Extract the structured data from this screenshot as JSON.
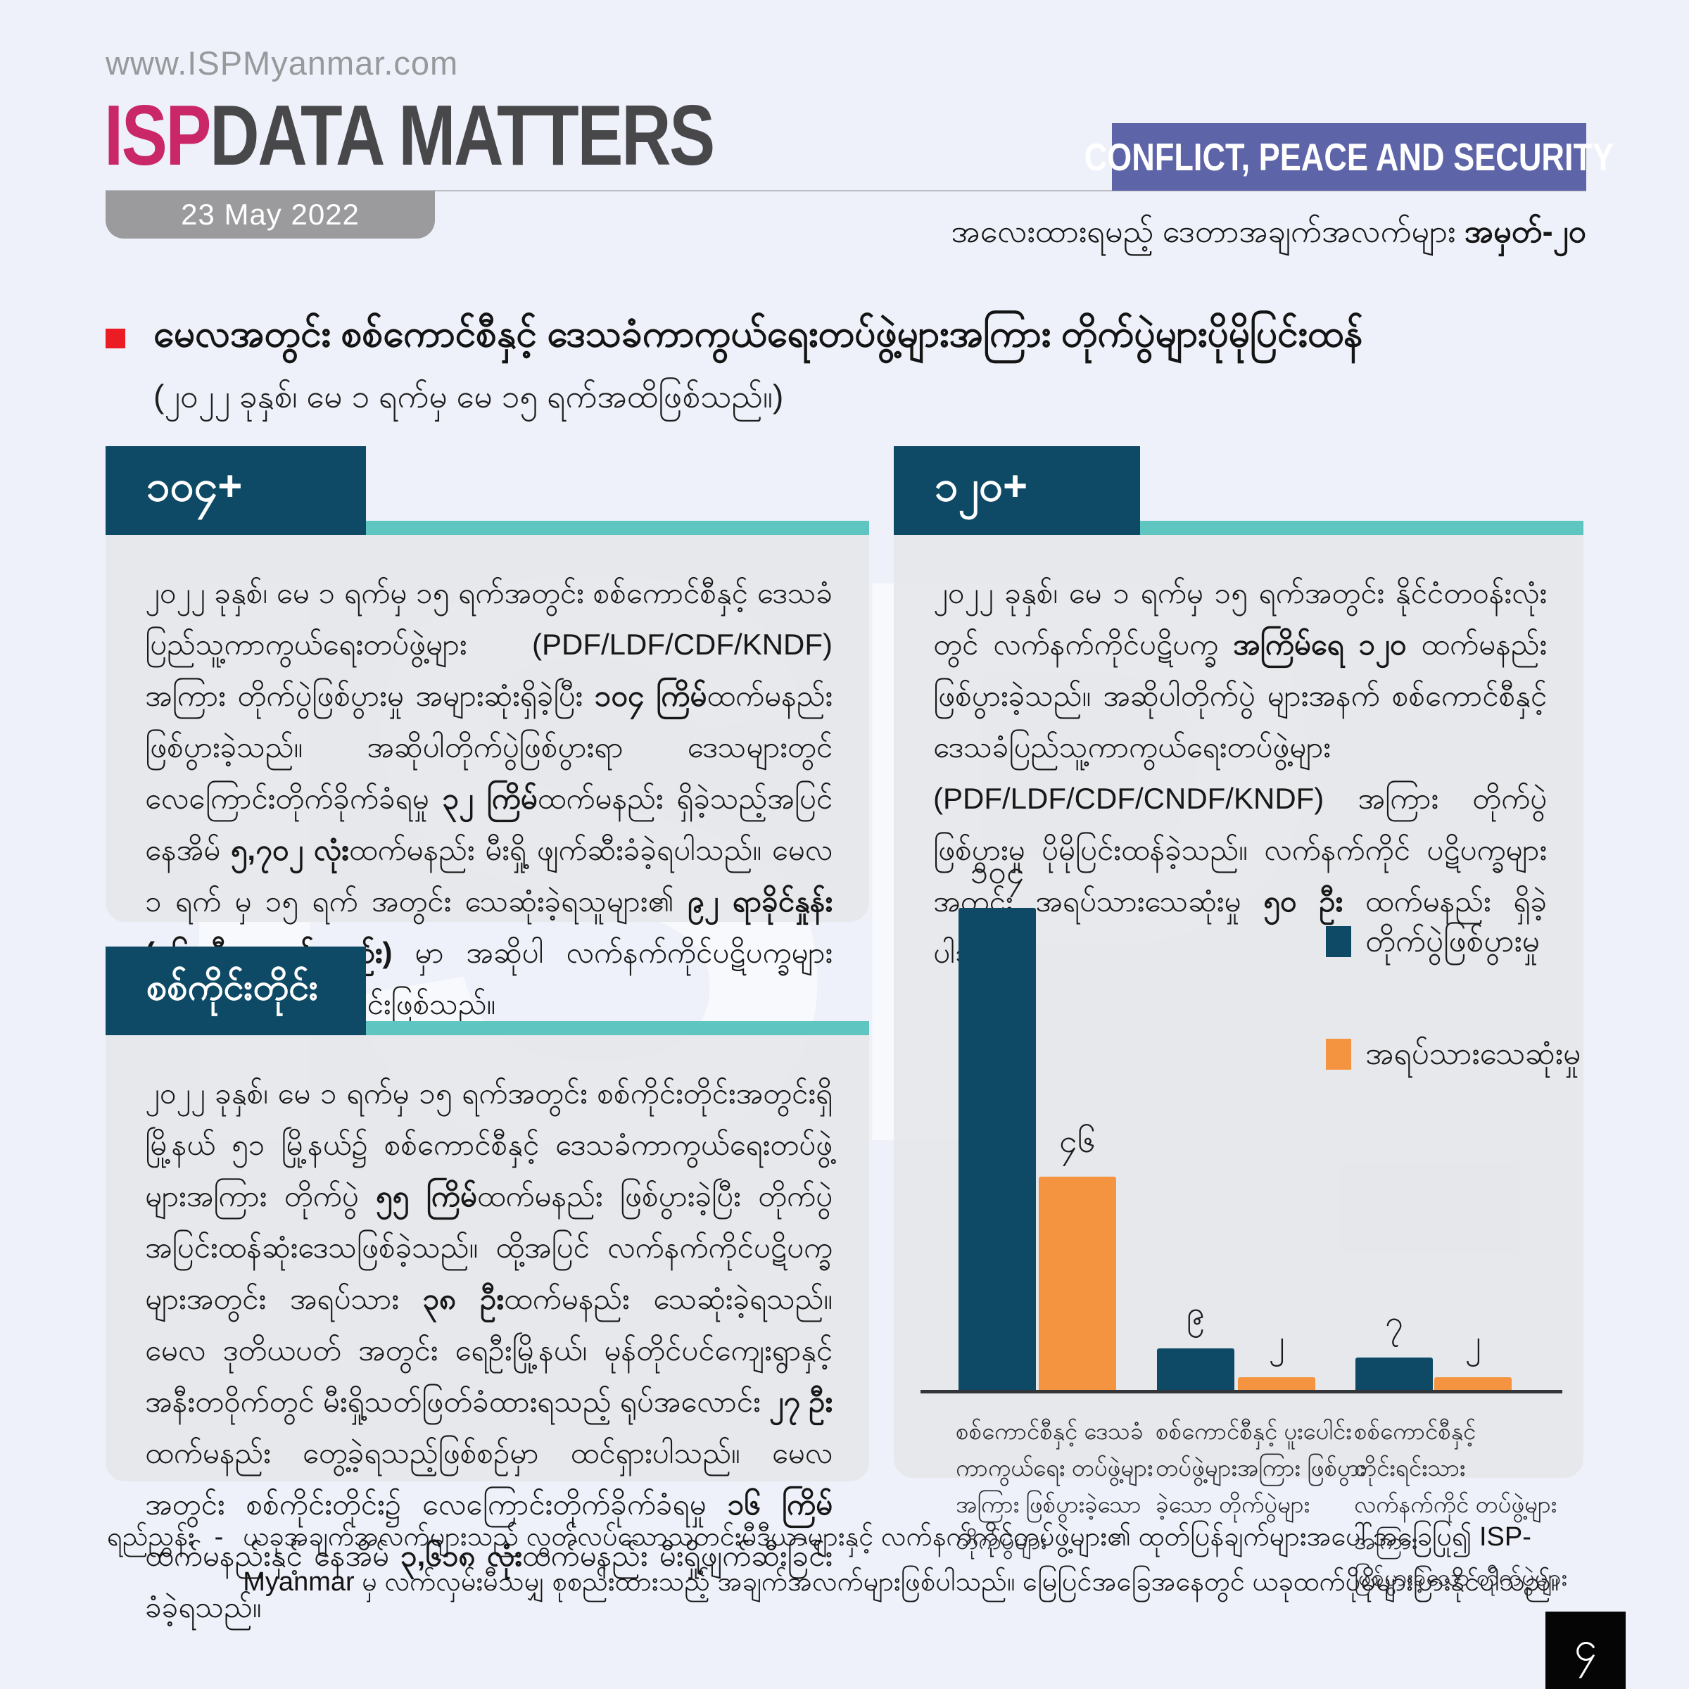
{
  "watermark": "ISP",
  "header": {
    "url": "www.ISPMyanmar.com",
    "brand_isp": "ISP",
    "brand_rest": "DATA MATTERS",
    "date": "23 May 2022",
    "category": "CONFLICT, PEACE AND SECURITY",
    "issue_line": [
      {
        "t": "အလေးထားရမည့် ဒေတာအချက်အလက်များ "
      },
      {
        "t": "အမှတ်-၂၀",
        "b": true
      }
    ]
  },
  "title": {
    "heading": "မေလအတွင်း စစ်ကောင်စီနှင့် ဒေသခံကာကွယ်ရေးတပ်ဖွဲ့များအကြား တိုက်ပွဲများပိုမိုပြင်းထန်",
    "period": "(၂၀၂၂ ခုနှစ်၊ မေ ၁ ရက်မှ မေ ၁၅ ရက်အထိဖြစ်သည်။)"
  },
  "stat_boxes": [
    {
      "badge": "၁၀၄+",
      "paragraph": [
        {
          "t": "၂၀၂၂ ခုနှစ်၊ မေ ၁ ရက်မှ ၁၅ ရက်အတွင်း စစ်ကောင်စီနှင့် ဒေသခံပြည်သူ့ကာကွယ်ရေးတပ်ဖွဲ့များ (PDF/LDF/CDF/KNDF) အကြား တိုက်ပွဲဖြစ်ပွားမှု အများဆုံးရှိခဲ့ပြီး "
        },
        {
          "t": "၁၀၄ ကြိမ်",
          "b": true
        },
        {
          "t": "ထက်မနည်း ဖြစ်ပွားခဲ့သည်။ အဆိုပါတိုက်ပွဲဖြစ်ပွားရာ ဒေသများတွင် လေကြောင်းတိုက်ခိုက်ခံရမှု "
        },
        {
          "t": "၃၂ ကြိမ်",
          "b": true
        },
        {
          "t": "ထက်မနည်း ရှိခဲ့သည့်အပြင် နေအိမ် "
        },
        {
          "t": "၅,၇၀၂ လုံး",
          "b": true
        },
        {
          "t": "ထက်မနည်း မီးရှို့ ဖျက်ဆီးခံခဲ့ရပါသည်။ မေလ ၁ ရက် မှ ၁၅ ရက် အတွင်း သေဆုံးခဲ့ရသူများ၏ "
        },
        {
          "t": "၉၂ ရာခိုင်နှုန်း (၄၆ ဦး ထက်မနည်း) ",
          "b": true
        },
        {
          "t": "မှာ အဆိုပါ လက်နက်ကိုင်ပဋိပက္ခများကြောင့် သေဆုံးခဲ့ရခြင်းဖြစ်သည်။"
        }
      ]
    },
    {
      "badge": "၁၂၀+",
      "paragraph": [
        {
          "t": "၂၀၂၂ ခုနှစ်၊ မေ ၁ ရက်မှ ၁၅ ရက်အတွင်း နိုင်ငံတဝန်းလုံးတွင် လက်နက်ကိုင်ပဋိပက္ခ "
        },
        {
          "t": "အကြိမ်ရေ ၁၂၀ ",
          "b": true
        },
        {
          "t": "ထက်မနည်း ဖြစ်ပွားခဲ့သည်။ အဆိုပါတိုက်ပွဲ များအနက် စစ်ကောင်စီနှင့် ဒေသခံပြည်သူ့ကာကွယ်ရေးတပ်ဖွဲ့များ (PDF/LDF/CDF/CNDF/KNDF) အကြား တိုက်ပွဲဖြစ်ပွားမှု ပိုမိုပြင်းထန်ခဲ့သည်။ လက်နက်ကိုင် ပဋိပက္ခများအတွင်း အရပ်သားသေဆုံးမှု "
        },
        {
          "t": "၅၀ ဦး ",
          "b": true
        },
        {
          "t": "ထက်မနည်း ရှိခဲ့ပါသည်။"
        }
      ]
    },
    {
      "badge": "စစ်ကိုင်းတိုင်း",
      "paragraph": [
        {
          "t": "၂၀၂၂ ခုနှစ်၊ မေ ၁ ရက်မှ ၁၅ ရက်အတွင်း စစ်ကိုင်းတိုင်းအတွင်းရှိ မြို့နယ် ၅၁ မြို့နယ်၌ စစ်ကောင်စီနှင့် ဒေသခံကာကွယ်ရေးတပ်ဖွဲ့များအကြား တိုက်ပွဲ "
        },
        {
          "t": "၅၅ ကြိမ်",
          "b": true
        },
        {
          "t": "ထက်မနည်း ဖြစ်ပွားခဲ့ပြီး တိုက်ပွဲ အပြင်းထန်ဆုံးဒေသဖြစ်ခဲ့သည်။ ထို့အပြင် လက်နက်ကိုင်ပဋိပက္ခများအတွင်း အရပ်သား "
        },
        {
          "t": "၃၈ ဦး",
          "b": true
        },
        {
          "t": "ထက်မနည်း သေဆုံးခဲ့ရသည်။ မေလ ဒုတိယပတ် အတွင်း ရေဦးမြို့နယ်၊ မုန်တိုင်ပင်ကျေးရွာနှင့် အနီးတဝိုက်တွင် မီးရှို့သတ်ဖြတ်ခံထားရသည့် ရုပ်အလောင်း "
        },
        {
          "t": "၂၇ ဦး",
          "b": true
        },
        {
          "t": "ထက်မနည်း တွေ့ခဲ့ရသည့်ဖြစ်စဉ်မှာ ထင်ရှားပါသည်။ မေလအတွင်း စစ်ကိုင်းတိုင်း၌ လေကြောင်းတိုက်ခိုက်ခံရမှု "
        },
        {
          "t": "၁၆ ကြိမ်",
          "b": true
        },
        {
          "t": "ထက်မနည်းနှင့် နေအိမ် "
        },
        {
          "t": "၃,၆၁၈ လုံး",
          "b": true
        },
        {
          "t": "ထက်မနည်း မီးရှို့ဖျက်ဆီးခြင်းခံခဲ့ရသည်။"
        }
      ]
    }
  ],
  "chart_data": {
    "type": "bar",
    "categories": [
      "စစ်ကောင်စီနှင့် ဒေသခံ\nကာကွယ်ရေး တပ်ဖွဲ့များ\nအကြား ဖြစ်ပွားခဲ့သော\nတိုက်ပွဲများ",
      "စစ်ကောင်စီနှင့် ပူးပေါင်း\nတပ်ဖွဲ့များအကြား ဖြစ်ပွား\nခဲ့သော တိုက်ပွဲများ",
      "စစ်ကောင်စီနှင့် တိုင်းရင်းသား\nလက်နက်ကိုင် တပ်ဖွဲ့များအကြား\nဖြစ်ပွားခဲ့သော တိုက်ပွဲများ"
    ],
    "series": [
      {
        "name": "တိုက်ပွဲဖြစ်ပွားမှု",
        "color": "#0e4a66",
        "values": [
          104,
          9,
          7
        ],
        "labels": [
          "၁၀၄",
          "၉",
          "၇"
        ]
      },
      {
        "name": "အရပ်သားသေဆုံးမှု",
        "color": "#f49440",
        "values": [
          46,
          2,
          2
        ],
        "labels": [
          "၄၆",
          "၂",
          "၂"
        ]
      }
    ],
    "title": "",
    "xlabel": "",
    "ylabel": "",
    "ylim": [
      0,
      110
    ],
    "grid": false,
    "legend_position": "top-right"
  },
  "footer": {
    "ref_label": "ရည်ညွှန်း",
    "dash": "-",
    "text": "ယခုအချက်အလက်များသည် လွတ်လပ်သောသတင်းမီဒီယာများနှင့် လက်နက်ကိုင်တပ်ဖွဲ့များ၏ ထုတ်ပြန်ချက်များအပေါ်အခြေပြု၍ ISP-Myanmar မှ လက်လှမ်းမီသမျှ စုစည်းထားသည့် အချက်အလက်များဖြစ်ပါသည်။ မြေပြင်အခြေအနေတွင် ယခုထက်ပိုမိုများပြားနိုင်ပါသည်။",
    "page_number": "၄"
  },
  "colors": {
    "background": "#eef1f9",
    "box_fill": "#e6e7ea",
    "navy": "#0e4a66",
    "orange": "#f49440",
    "teal_accent": "#5ec5c1",
    "purple_banner": "#5d64a7",
    "brand_magenta": "#c92767",
    "brand_gray": "#48484b",
    "date_tab_gray": "#9b9b9d",
    "red_bullet": "#ec1c24",
    "page_box_black": "#050505"
  }
}
